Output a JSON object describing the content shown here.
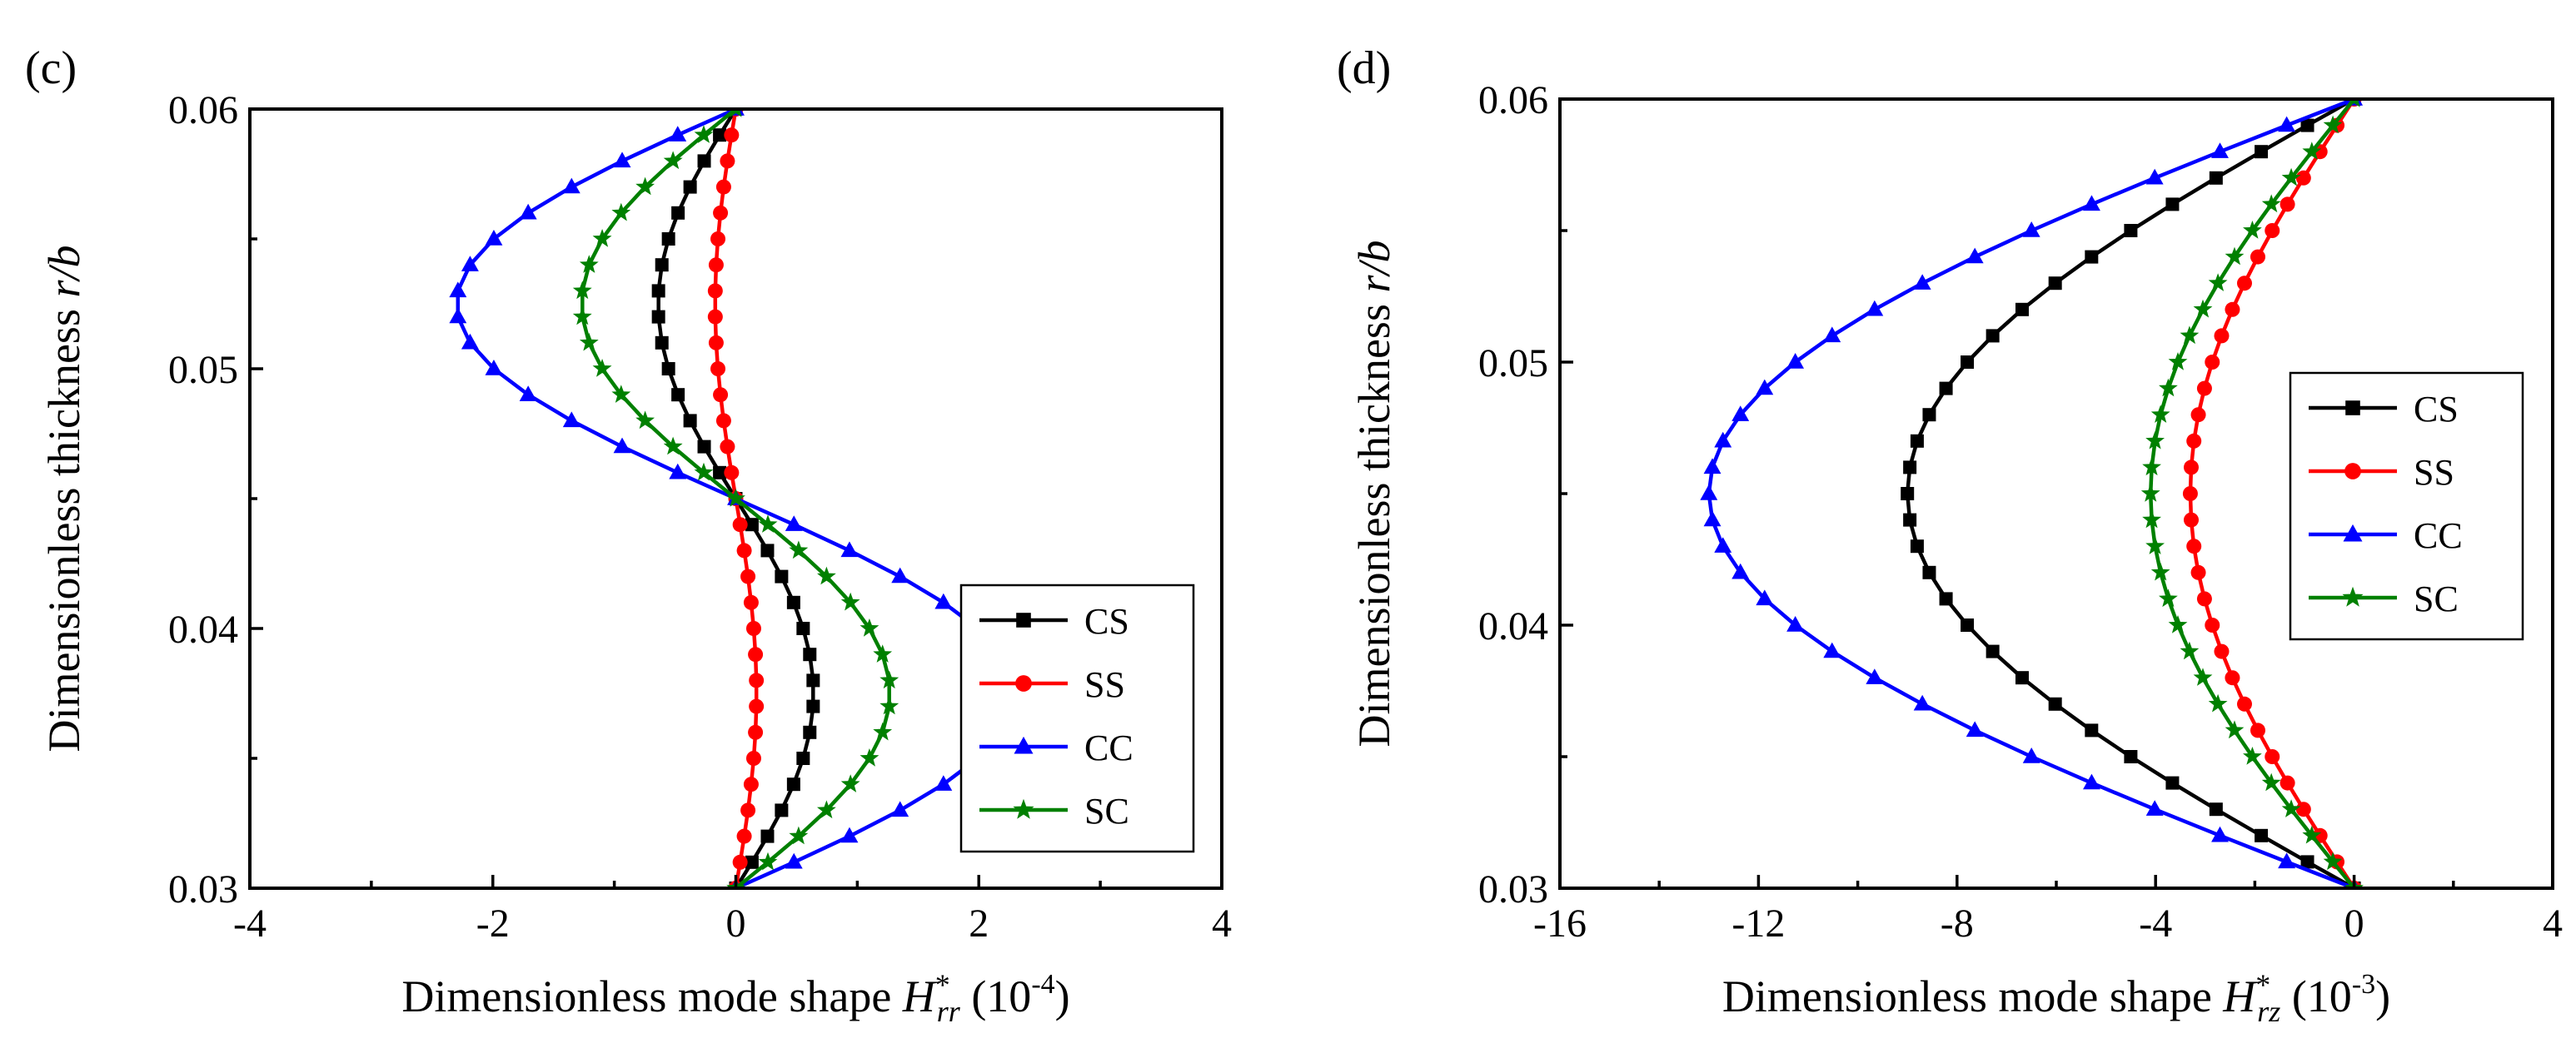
{
  "chart_data": [
    {
      "type": "line",
      "panel_label": "(c)",
      "xlabel_prefix": "Dimensionless mode shape ",
      "xlabel_symbol": "H",
      "xlabel_sup": "*",
      "xlabel_sub": "rr",
      "xlabel_unit_open": " (10",
      "xlabel_unit_exp": "-4",
      "xlabel_unit_close": ")",
      "ylabel_prefix": "Dimensionless thickness ",
      "ylabel_symbol": "r/b",
      "xlim": [
        -4,
        4
      ],
      "ylim": [
        0.03,
        0.06
      ],
      "xticks": [
        -4,
        -2,
        0,
        2,
        4
      ],
      "xtick_labels": [
        "-4",
        "-2",
        "0",
        "2",
        "4"
      ],
      "yticks": [
        0.03,
        0.04,
        0.05,
        0.06
      ],
      "ytick_labels": [
        "0.03",
        "0.04",
        "0.05",
        "0.06"
      ],
      "legend_position": "bottom-right",
      "series": [
        {
          "name": "CS",
          "color": "#000000",
          "marker": "square",
          "shape": "antisym",
          "amp": 0.64,
          "x_at_extreme": 0.0
        },
        {
          "name": "SS",
          "color": "#ff0000",
          "marker": "circle",
          "shape": "antisym",
          "amp": 0.17,
          "x_at_extreme": 0.0
        },
        {
          "name": "CC",
          "color": "#0000ff",
          "marker": "triangle",
          "shape": "antisym",
          "amp": 2.3,
          "x_at_extreme": 0.0
        },
        {
          "name": "SC",
          "color": "#008000",
          "marker": "star",
          "shape": "antisym",
          "amp": 1.27,
          "x_at_extreme": 0.0
        }
      ]
    },
    {
      "type": "line",
      "panel_label": "(d)",
      "xlabel_prefix": "Dimensionless mode shape ",
      "xlabel_symbol": "H",
      "xlabel_sup": "*",
      "xlabel_sub": "rz",
      "xlabel_unit_open": " (10",
      "xlabel_unit_exp": "-3",
      "xlabel_unit_close": ")",
      "ylabel_prefix": "Dimensionless thickness ",
      "ylabel_symbol": "r/b",
      "xlim": [
        -16,
        4
      ],
      "ylim": [
        0.03,
        0.06
      ],
      "xticks": [
        -16,
        -12,
        -8,
        -4,
        0,
        4
      ],
      "xtick_labels": [
        "-16",
        "-12",
        "-8",
        "-4",
        "0",
        "4"
      ],
      "yticks": [
        0.03,
        0.04,
        0.05,
        0.06
      ],
      "ytick_labels": [
        "0.03",
        "0.04",
        "0.05",
        "0.06"
      ],
      "legend_position": "center-right",
      "series": [
        {
          "name": "CS",
          "color": "#000000",
          "marker": "square",
          "shape": "bowl",
          "amp": 9.0,
          "x_at_extreme": 0.0
        },
        {
          "name": "SS",
          "color": "#ff0000",
          "marker": "circle",
          "shape": "bowl",
          "amp": 3.3,
          "x_at_extreme": 0.0
        },
        {
          "name": "CC",
          "color": "#0000ff",
          "marker": "triangle",
          "shape": "bowl",
          "amp": 13.0,
          "x_at_extreme": 0.0
        },
        {
          "name": "SC",
          "color": "#008000",
          "marker": "star",
          "shape": "bowl",
          "amp": 4.1,
          "x_at_extreme": 0.0
        }
      ]
    }
  ]
}
